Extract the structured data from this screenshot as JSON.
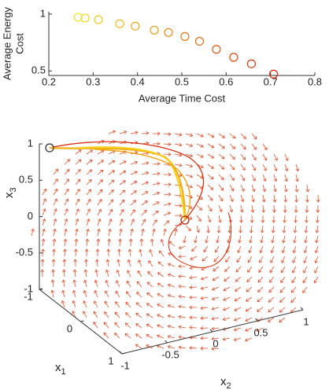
{
  "chart_data": [
    {
      "type": "scatter",
      "x": [
        0.266,
        0.282,
        0.312,
        0.36,
        0.395,
        0.438,
        0.47,
        0.507,
        0.54,
        0.578,
        0.617,
        0.657,
        0.707
      ],
      "values": [
        0.972,
        0.965,
        0.951,
        0.915,
        0.894,
        0.859,
        0.838,
        0.803,
        0.761,
        0.69,
        0.62,
        0.563,
        0.472
      ],
      "colors": [
        "#f2e61c",
        "#f2d81a",
        "#f2ca19",
        "#f0b817",
        "#efa815",
        "#ee9814",
        "#ec8812",
        "#eb7810",
        "#e9680f",
        "#e7580d",
        "#e5480c",
        "#e3380a",
        "#e02808"
      ],
      "xlim": [
        0.2,
        0.8
      ],
      "ylim": [
        0.46,
        1.02
      ],
      "xticks": [
        0.2,
        0.3,
        0.4,
        0.5,
        0.6,
        0.7,
        0.8
      ],
      "yticks": [
        0.5,
        1
      ],
      "xlabel": "Average Time Cost",
      "ylabel": [
        "Average Energy",
        "Cost"
      ]
    },
    {
      "type": "quiver3d",
      "x1label": {
        "base": "x",
        "sub": "1"
      },
      "x2label": {
        "base": "x",
        "sub": "2"
      },
      "x3label": {
        "base": "x",
        "sub": "3"
      },
      "x1lim": [
        -1,
        1
      ],
      "x2lim": [
        -1,
        1
      ],
      "x3lim": [
        -1,
        1
      ],
      "x1ticks": [
        -1,
        0,
        1
      ],
      "x2ticks": [
        -1,
        -0.5,
        0,
        0.5,
        1
      ],
      "x3ticks": [
        1,
        0.5,
        0,
        -0.5,
        -1
      ],
      "color": "#e4502a"
    }
  ]
}
